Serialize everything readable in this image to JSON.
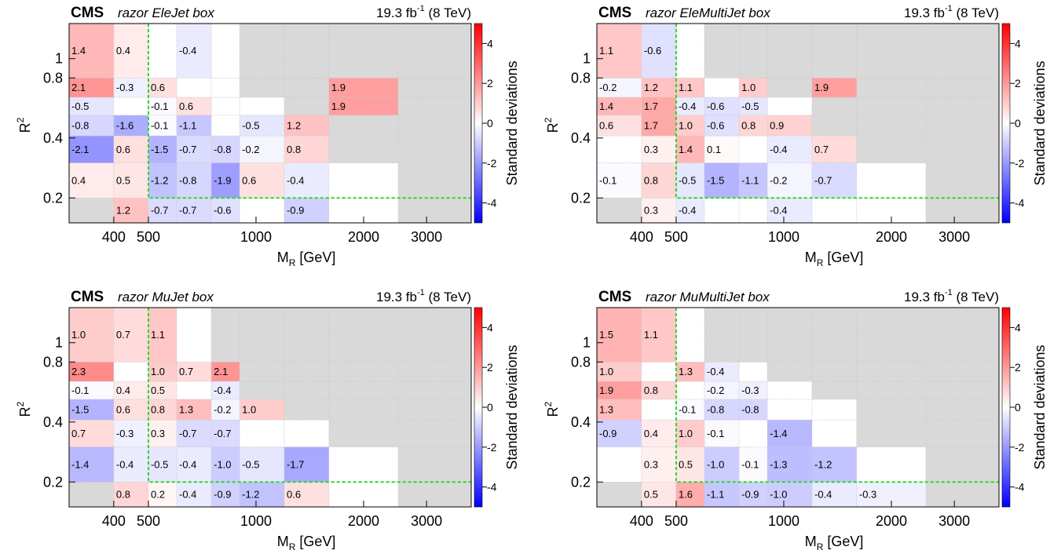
{
  "figure": {
    "panels": [
      {
        "experiment": "CMS",
        "box": "razor EleJet box",
        "lumi_value": "19.3 fb",
        "lumi_exp": "-1",
        "energy": "(8 TeV)"
      },
      {
        "experiment": "CMS",
        "box": "razor EleMultiJet box",
        "lumi_value": "19.3 fb",
        "lumi_exp": "-1",
        "energy": "(8 TeV)"
      },
      {
        "experiment": "CMS",
        "box": "razor MuJet box",
        "lumi_value": "19.3 fb",
        "lumi_exp": "-1",
        "energy": "(8 TeV)"
      },
      {
        "experiment": "CMS",
        "box": "razor MuMultiJet box",
        "lumi_value": "19.3 fb",
        "lumi_exp": "-1",
        "energy": "(8 TeV)"
      }
    ]
  },
  "colors": {
    "positive": "#ff0000",
    "negative": "#0000ff",
    "zero": "#ffffff",
    "excluded": "#d9d9d9",
    "boundary": "#22dd22",
    "grid": "#c8c8c8"
  },
  "chart_data": [
    {
      "type": "heatmap",
      "title": "CMS razor EleJet box",
      "xlabel": "M_R [GeV]",
      "ylabel": "R^2",
      "zlabel": "Standard deviations",
      "xscale": "log",
      "yscale": "log",
      "x_edges": [
        300,
        400,
        500,
        600,
        750,
        900,
        1200,
        1600,
        2500,
        4000
      ],
      "y_edges": [
        0.15,
        0.2,
        0.3,
        0.41,
        0.52,
        0.64,
        0.8,
        1.5
      ],
      "x_ticks": [
        400,
        500,
        1000,
        2000,
        3000
      ],
      "y_ticks": [
        0.2,
        0.4,
        0.8,
        1
      ],
      "z_range": [
        -5,
        5
      ],
      "z_ticks": [
        -4,
        -2,
        0,
        2,
        4
      ],
      "signal_region": {
        "mr_min": 500,
        "r2_min": 0.2
      },
      "values": [
        [
          null,
          1.2,
          -0.7,
          -0.7,
          -0.6,
          0.0,
          -0.9,
          0.0,
          null
        ],
        [
          0.4,
          0.5,
          -1.2,
          -0.8,
          -1.9,
          0.6,
          -0.4,
          0.0,
          null
        ],
        [
          -2.1,
          0.6,
          -1.5,
          -0.7,
          -0.8,
          -0.2,
          0.8,
          null,
          null
        ],
        [
          -0.8,
          -1.6,
          -0.1,
          -1.1,
          0.0,
          -0.5,
          1.2,
          null,
          null
        ],
        [
          -0.5,
          0.0,
          -0.1,
          0.6,
          0.0,
          0.0,
          null,
          1.9,
          null
        ],
        [
          2.1,
          -0.3,
          0.6,
          0.0,
          0.0,
          null,
          null,
          1.9,
          null
        ],
        [
          1.4,
          0.4,
          0.0,
          -0.4,
          0.0,
          null,
          null,
          null,
          null
        ]
      ],
      "labels": [
        [
          "",
          "1.2",
          "-0.7",
          "-0.7",
          "-0.6",
          "",
          "-0.9",
          "",
          ""
        ],
        [
          "0.4",
          "0.5",
          "-1.2",
          "-0.8",
          "-1.9",
          "0.6",
          "-0.4",
          "",
          ""
        ],
        [
          "-2.1",
          "0.6",
          "-1.5",
          "-0.7",
          "-0.8",
          "-0.2",
          "0.8",
          "",
          ""
        ],
        [
          "-0.8",
          "-1.6",
          "-0.1",
          "-1.1",
          "",
          "-0.5",
          "1.2",
          "",
          ""
        ],
        [
          "-0.5",
          "",
          "-0.1",
          "0.6",
          "",
          "",
          "",
          "1.9",
          ""
        ],
        [
          "2.1",
          "-0.3",
          "0.6",
          "",
          "",
          "",
          "",
          "1.9",
          ""
        ],
        [
          "1.4",
          "0.4",
          "",
          "-0.4",
          "",
          "",
          "",
          "",
          ""
        ]
      ]
    },
    {
      "type": "heatmap",
      "title": "CMS razor EleMultiJet box",
      "xlabel": "M_R [GeV]",
      "ylabel": "R^2",
      "zlabel": "Standard deviations",
      "xscale": "log",
      "yscale": "log",
      "x_edges": [
        300,
        400,
        500,
        600,
        750,
        900,
        1200,
        1600,
        2500,
        4000
      ],
      "y_edges": [
        0.15,
        0.2,
        0.3,
        0.41,
        0.52,
        0.64,
        0.8,
        1.5
      ],
      "x_ticks": [
        400,
        500,
        1000,
        2000,
        3000
      ],
      "y_ticks": [
        0.2,
        0.4,
        0.8,
        1
      ],
      "z_range": [
        -5,
        5
      ],
      "z_ticks": [
        -4,
        -2,
        0,
        2,
        4
      ],
      "signal_region": {
        "mr_min": 500,
        "r2_min": 0.2
      },
      "values": [
        [
          null,
          0.3,
          -0.4,
          0.0,
          0.0,
          -0.4,
          0.0,
          0.0,
          null
        ],
        [
          -0.1,
          0.8,
          -0.5,
          -1.5,
          -1.1,
          -0.2,
          -0.7,
          0.0,
          null
        ],
        [
          0.0,
          0.3,
          1.4,
          0.1,
          0.0,
          -0.4,
          0.7,
          null,
          null
        ],
        [
          0.6,
          1.7,
          1.0,
          -0.6,
          0.8,
          0.9,
          null,
          null,
          null
        ],
        [
          1.4,
          1.7,
          -0.4,
          -0.6,
          -0.5,
          0.0,
          null,
          null,
          null
        ],
        [
          -0.2,
          1.2,
          1.1,
          0.0,
          1.0,
          null,
          1.9,
          null,
          null
        ],
        [
          1.1,
          -0.6,
          0.0,
          null,
          null,
          null,
          null,
          null,
          null
        ]
      ],
      "labels": [
        [
          "",
          "0.3",
          "-0.4",
          "",
          "",
          "-0.4",
          "",
          "",
          ""
        ],
        [
          "-0.1",
          "0.8",
          "-0.5",
          "-1.5",
          "-1.1",
          "-0.2",
          "-0.7",
          "",
          ""
        ],
        [
          "",
          "0.3",
          "1.4",
          "0.1",
          "",
          "-0.4",
          "0.7",
          "",
          ""
        ],
        [
          "0.6",
          "1.7",
          "1.0",
          "-0.6",
          "0.8",
          "0.9",
          "",
          "",
          ""
        ],
        [
          "1.4",
          "1.7",
          "-0.4",
          "-0.6",
          "-0.5",
          "",
          "",
          "",
          ""
        ],
        [
          "-0.2",
          "1.2",
          "1.1",
          "",
          "1.0",
          "",
          "1.9",
          "",
          ""
        ],
        [
          "1.1",
          "-0.6",
          "",
          "",
          "",
          "",
          "",
          "",
          ""
        ]
      ]
    },
    {
      "type": "heatmap",
      "title": "CMS razor MuJet box",
      "xlabel": "M_R [GeV]",
      "ylabel": "R^2",
      "zlabel": "Standard deviations",
      "xscale": "log",
      "yscale": "log",
      "x_edges": [
        300,
        400,
        500,
        600,
        750,
        900,
        1200,
        1600,
        2500,
        4000
      ],
      "y_edges": [
        0.15,
        0.2,
        0.3,
        0.41,
        0.52,
        0.64,
        0.8,
        1.5
      ],
      "x_ticks": [
        400,
        500,
        1000,
        2000,
        3000
      ],
      "y_ticks": [
        0.2,
        0.4,
        0.8,
        1
      ],
      "z_range": [
        -5,
        5
      ],
      "z_ticks": [
        -4,
        -2,
        0,
        2,
        4
      ],
      "signal_region": {
        "mr_min": 500,
        "r2_min": 0.2
      },
      "values": [
        [
          null,
          0.8,
          0.2,
          -0.4,
          -0.9,
          -1.2,
          0.6,
          0.0,
          null
        ],
        [
          -1.4,
          -0.4,
          -0.5,
          -0.4,
          -1.0,
          -0.5,
          -1.7,
          0.0,
          null
        ],
        [
          0.7,
          -0.3,
          0.3,
          -0.7,
          -0.7,
          0.0,
          0.0,
          null,
          null
        ],
        [
          -1.5,
          0.6,
          0.8,
          1.3,
          -0.2,
          1.0,
          null,
          null,
          null
        ],
        [
          -0.1,
          0.4,
          0.5,
          0.0,
          -0.4,
          null,
          null,
          null,
          null
        ],
        [
          2.3,
          0.0,
          1.0,
          0.7,
          2.1,
          null,
          null,
          null,
          null
        ],
        [
          1.0,
          0.7,
          1.1,
          0.0,
          null,
          null,
          null,
          null,
          null
        ]
      ],
      "labels": [
        [
          "",
          "0.8",
          "0.2",
          "-0.4",
          "-0.9",
          "-1.2",
          "0.6",
          "",
          ""
        ],
        [
          "-1.4",
          "-0.4",
          "-0.5",
          "-0.4",
          "-1.0",
          "-0.5",
          "-1.7",
          "",
          ""
        ],
        [
          "0.7",
          "-0.3",
          "0.3",
          "-0.7",
          "-0.7",
          "",
          "",
          "",
          ""
        ],
        [
          "-1.5",
          "0.6",
          "0.8",
          "1.3",
          "-0.2",
          "1.0",
          "",
          "",
          ""
        ],
        [
          "-0.1",
          "0.4",
          "0.5",
          "",
          "-0.4",
          "",
          "",
          "",
          ""
        ],
        [
          "2.3",
          "",
          "1.0",
          "0.7",
          "2.1",
          "",
          "",
          "",
          ""
        ],
        [
          "1.0",
          "0.7",
          "1.1",
          "",
          "",
          "",
          "",
          "",
          ""
        ]
      ]
    },
    {
      "type": "heatmap",
      "title": "CMS razor MuMultiJet box",
      "xlabel": "M_R [GeV]",
      "ylabel": "R^2",
      "zlabel": "Standard deviations",
      "xscale": "log",
      "yscale": "log",
      "x_edges": [
        300,
        400,
        500,
        600,
        750,
        900,
        1200,
        1600,
        2500,
        4000
      ],
      "y_edges": [
        0.15,
        0.2,
        0.3,
        0.41,
        0.52,
        0.64,
        0.8,
        1.5
      ],
      "x_ticks": [
        400,
        500,
        1000,
        2000,
        3000
      ],
      "y_ticks": [
        0.2,
        0.4,
        0.8,
        1
      ],
      "z_range": [
        -5,
        5
      ],
      "z_ticks": [
        -4,
        -2,
        0,
        2,
        4
      ],
      "signal_region": {
        "mr_min": 500,
        "r2_min": 0.2
      },
      "values": [
        [
          null,
          0.5,
          1.6,
          -1.1,
          -0.9,
          -1.0,
          -0.4,
          -0.3,
          null
        ],
        [
          0.0,
          0.3,
          0.5,
          -1.0,
          -0.1,
          -1.3,
          -1.2,
          0.0,
          null
        ],
        [
          -0.9,
          0.4,
          1.0,
          -0.1,
          0.0,
          -1.4,
          0.0,
          null,
          null
        ],
        [
          1.3,
          0.0,
          -0.1,
          -0.8,
          -0.8,
          0.0,
          0.0,
          null,
          null
        ],
        [
          1.9,
          0.8,
          0.0,
          -0.2,
          -0.3,
          0.0,
          null,
          null,
          null
        ],
        [
          1.0,
          0.0,
          1.3,
          -0.4,
          0.0,
          null,
          null,
          null,
          null
        ],
        [
          1.5,
          1.1,
          0.0,
          null,
          null,
          null,
          null,
          null,
          null
        ]
      ],
      "labels": [
        [
          "",
          "0.5",
          "1.6",
          "-1.1",
          "-0.9",
          "-1.0",
          "-0.4",
          "-0.3",
          ""
        ],
        [
          "",
          "0.3",
          "0.5",
          "-1.0",
          "-0.1",
          "-1.3",
          "-1.2",
          "",
          ""
        ],
        [
          "-0.9",
          "0.4",
          "1.0",
          "-0.1",
          "",
          "-1.4",
          "",
          "",
          ""
        ],
        [
          "1.3",
          "",
          "-0.1",
          "-0.8",
          "-0.8",
          "",
          "",
          "",
          ""
        ],
        [
          "1.9",
          "0.8",
          "",
          "-0.2",
          "-0.3",
          "",
          "",
          "",
          ""
        ],
        [
          "1.0",
          "",
          "1.3",
          "-0.4",
          "",
          "",
          "",
          "",
          ""
        ],
        [
          "1.5",
          "1.1",
          "",
          "",
          "",
          "",
          "",
          "",
          ""
        ]
      ]
    }
  ]
}
